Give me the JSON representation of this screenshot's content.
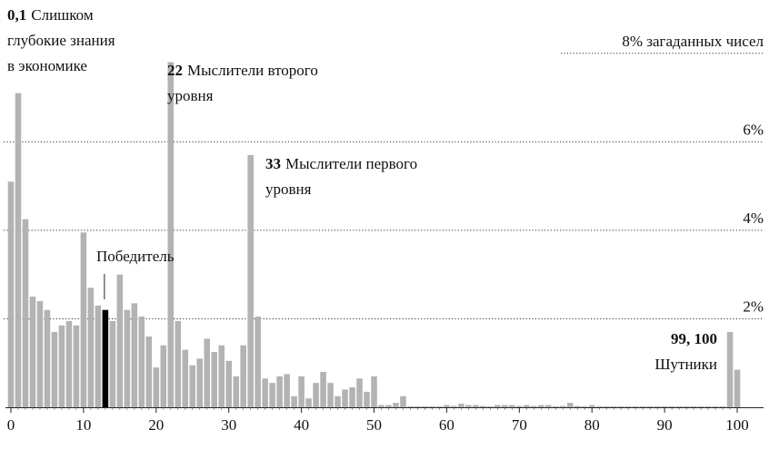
{
  "chart_data": {
    "type": "histogram",
    "x": [
      0,
      1,
      2,
      3,
      4,
      5,
      6,
      7,
      8,
      9,
      10,
      11,
      12,
      13,
      14,
      15,
      16,
      17,
      18,
      19,
      20,
      21,
      22,
      23,
      24,
      25,
      26,
      27,
      28,
      29,
      30,
      31,
      32,
      33,
      34,
      35,
      36,
      37,
      38,
      39,
      40,
      41,
      42,
      43,
      44,
      45,
      46,
      47,
      48,
      49,
      50,
      51,
      52,
      53,
      54,
      55,
      56,
      57,
      58,
      59,
      60,
      61,
      62,
      63,
      64,
      65,
      66,
      67,
      68,
      69,
      70,
      71,
      72,
      73,
      74,
      75,
      76,
      77,
      78,
      79,
      80,
      81,
      82,
      83,
      84,
      85,
      86,
      87,
      88,
      89,
      90,
      91,
      92,
      93,
      94,
      95,
      96,
      97,
      98,
      99,
      100
    ],
    "values": [
      5.1,
      7.1,
      4.25,
      2.5,
      2.4,
      2.2,
      1.7,
      1.85,
      1.95,
      1.85,
      3.95,
      2.7,
      2.3,
      2.2,
      1.95,
      3.0,
      2.2,
      2.35,
      2.05,
      1.6,
      0.9,
      1.4,
      7.8,
      1.95,
      1.3,
      0.95,
      1.1,
      1.55,
      1.25,
      1.4,
      1.05,
      0.7,
      1.4,
      5.7,
      2.05,
      0.65,
      0.55,
      0.7,
      0.75,
      0.25,
      0.7,
      0.2,
      0.55,
      0.8,
      0.55,
      0.25,
      0.4,
      0.45,
      0.65,
      0.35,
      0.7,
      0.05,
      0.05,
      0.1,
      0.25,
      0.02,
      0.02,
      0.02,
      0.02,
      0.02,
      0.05,
      0.03,
      0.08,
      0.05,
      0.05,
      0.03,
      0.02,
      0.05,
      0.05,
      0.05,
      0.03,
      0.05,
      0.03,
      0.05,
      0.05,
      0.02,
      0.03,
      0.1,
      0.03,
      0.02,
      0.05,
      0.02,
      0.02,
      0.02,
      0.02,
      0.02,
      0.02,
      0.02,
      0.02,
      0.02,
      0.02,
      0.02,
      0.02,
      0.02,
      0.02,
      0.02,
      0.02,
      0.02,
      0.02,
      1.7,
      0.85
    ],
    "color": "#b3b3b3",
    "highlight": {
      "x": 13,
      "color": "#000000",
      "label": "Победитель"
    },
    "xlim": [
      -1,
      104
    ],
    "xticks": [
      0,
      10,
      20,
      30,
      40,
      50,
      60,
      70,
      80,
      90,
      100
    ],
    "ylim": [
      0,
      8.2
    ],
    "yticks": [
      {
        "value": 2,
        "label": "2%"
      },
      {
        "value": 4,
        "label": "4%"
      },
      {
        "value": 6,
        "label": "6%"
      },
      {
        "value": 8,
        "label": "8% загаданных чисел"
      }
    ],
    "grid": true,
    "annotations": [
      {
        "bold": "0,1",
        "lines": [
          "Слишком",
          "глубокие знания",
          "в экономике"
        ]
      },
      {
        "bold": "22",
        "lines": [
          "Мыслители второго",
          "уровня"
        ]
      },
      {
        "bold": "33",
        "lines": [
          "Мыслители первого",
          "уровня"
        ]
      },
      {
        "bold": "99, 100",
        "lines": [
          "Шутники"
        ]
      }
    ]
  }
}
